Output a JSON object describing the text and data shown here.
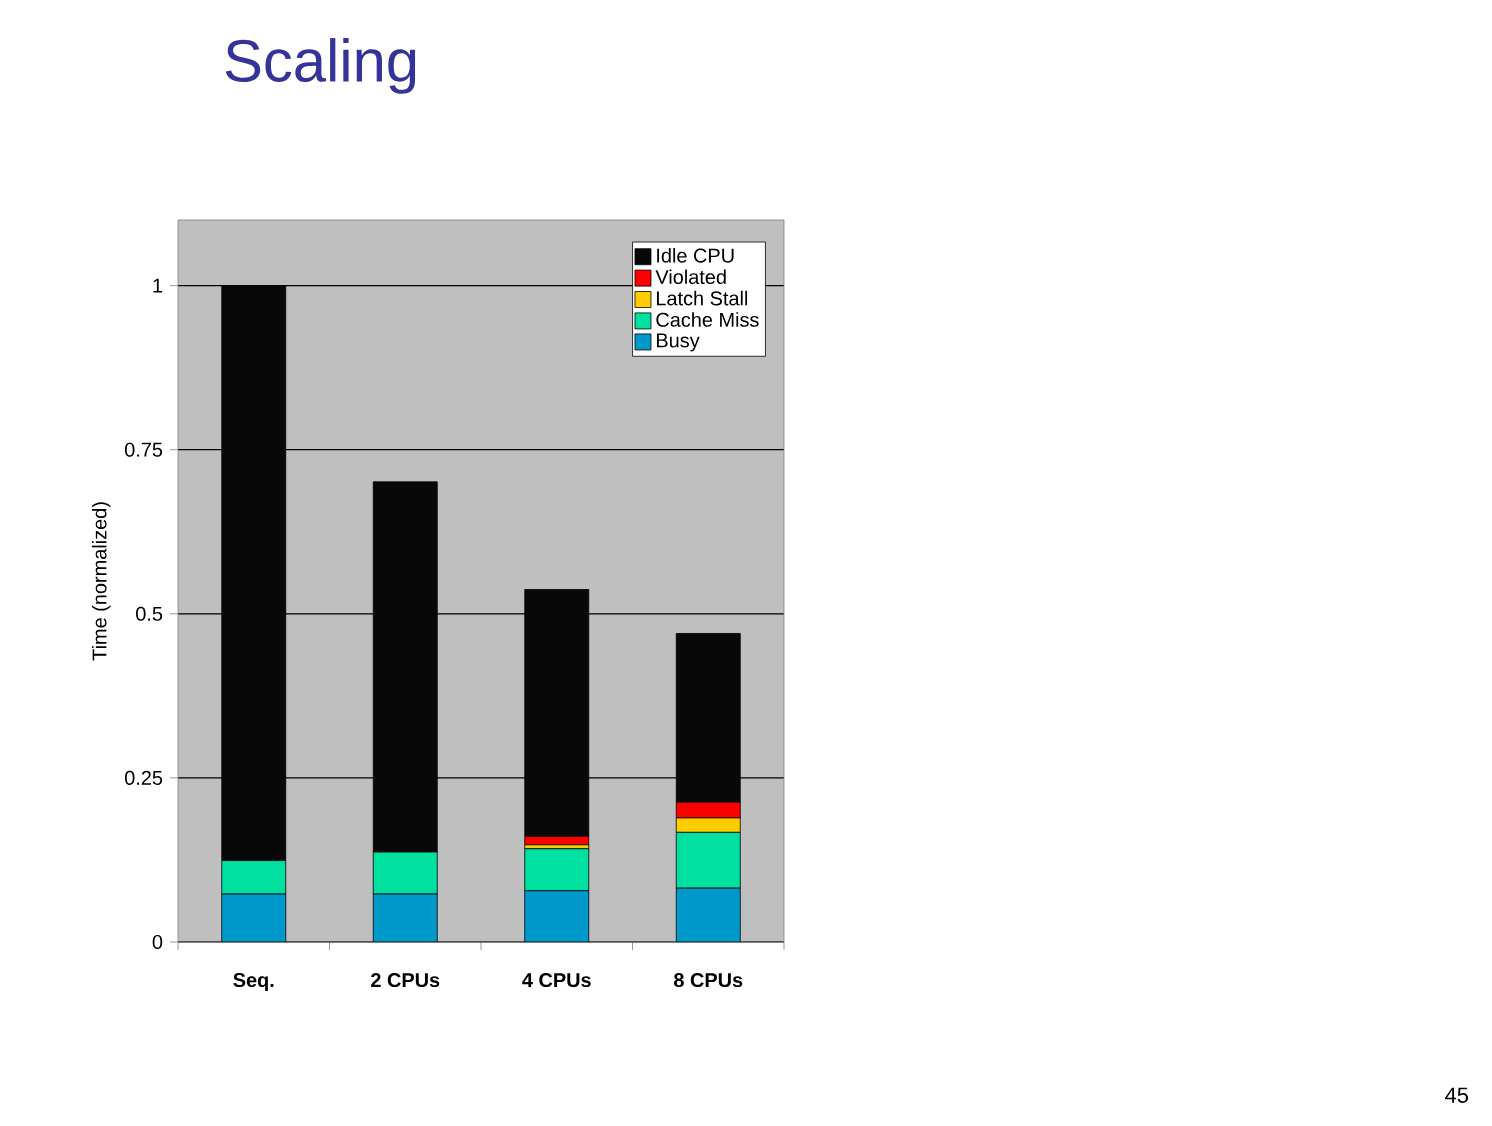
{
  "chart_data": {
    "type": "bar",
    "title": "Scaling",
    "ylabel": "Time (normalized)",
    "categories": [
      "Seq.",
      "2 CPUs",
      "4 CPUs",
      "8 CPUs"
    ],
    "stacked": true,
    "series": [
      {
        "name": "Busy",
        "color": "#0099cc",
        "values": [
          0.073,
          0.073,
          0.078,
          0.082
        ]
      },
      {
        "name": "Cache Miss",
        "color": "#00e0a0",
        "values": [
          0.051,
          0.064,
          0.064,
          0.085
        ]
      },
      {
        "name": "Latch Stall",
        "color": "#ffcc00",
        "values": [
          0,
          0,
          0.006,
          0.022
        ]
      },
      {
        "name": "Violated",
        "color": "#ff0000",
        "values": [
          0,
          0,
          0.013,
          0.024
        ]
      },
      {
        "name": "Idle CPU",
        "color": "#080808",
        "values": [
          0.876,
          0.564,
          0.376,
          0.257
        ]
      }
    ],
    "ylim": [
      0,
      1.1
    ],
    "yticks": [
      0,
      0.25,
      0.5,
      0.75,
      1
    ],
    "grid": "y",
    "legend": "top right",
    "annotations": [
      "45"
    ]
  }
}
